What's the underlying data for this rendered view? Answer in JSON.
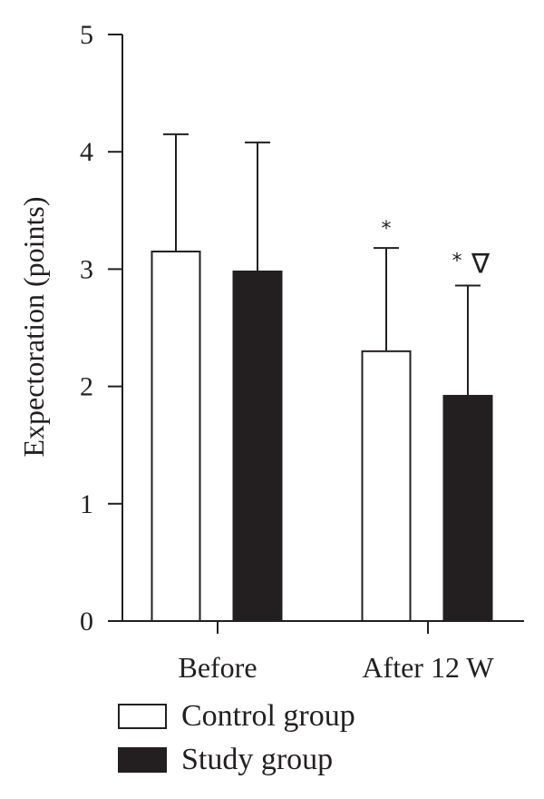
{
  "chart_data": {
    "type": "bar",
    "ylabel": "Expectoration (points)",
    "ylim": [
      0,
      5
    ],
    "yticks": [
      0,
      1,
      2,
      3,
      4,
      5
    ],
    "categories": [
      "Before",
      "After 12 W"
    ],
    "grid": false,
    "legend_position": "bottom-left",
    "series": [
      {
        "name": "Control group",
        "values": [
          3.15,
          2.3
        ],
        "error_upper": [
          4.15,
          3.18
        ],
        "fill": "#ffffff",
        "annotations": [
          "",
          "*"
        ]
      },
      {
        "name": "Study group",
        "values": [
          2.98,
          1.92
        ],
        "error_upper": [
          4.08,
          2.86
        ],
        "fill": "#231f20",
        "annotations": [
          "",
          "* ∇"
        ]
      }
    ]
  }
}
